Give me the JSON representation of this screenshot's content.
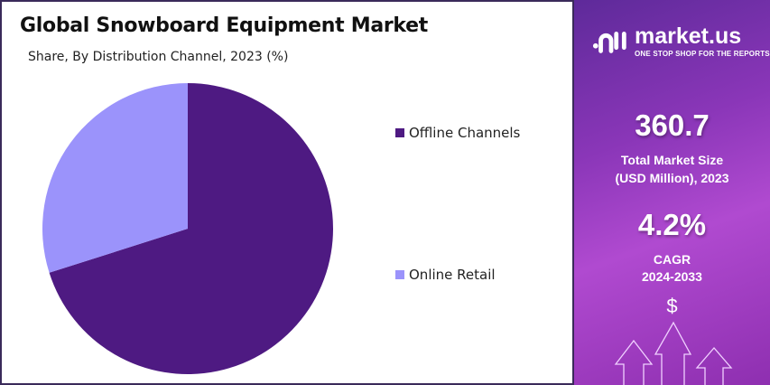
{
  "chart_data": {
    "type": "pie",
    "title": "Global Snowboard Equipment Market",
    "subtitle": "Share, By Distribution Channel, 2023 (%)",
    "categories": [
      "Offline Channels",
      "Online Retail"
    ],
    "values": [
      70.1,
      29.9
    ],
    "colors": [
      "#4e1a82",
      "#9b93fb"
    ],
    "legend_position": "right"
  },
  "side_panel": {
    "logo_name": "market.us",
    "logo_tagline": "ONE STOP SHOP FOR THE REPORTS",
    "market_size": "360.7",
    "market_size_label_1": "Total Market Size",
    "market_size_label_2": "(USD Million), 2023",
    "cagr": "4.2%",
    "cagr_label_1": "CAGR",
    "cagr_label_2": "2024-2033",
    "dollar_symbol": "$"
  }
}
